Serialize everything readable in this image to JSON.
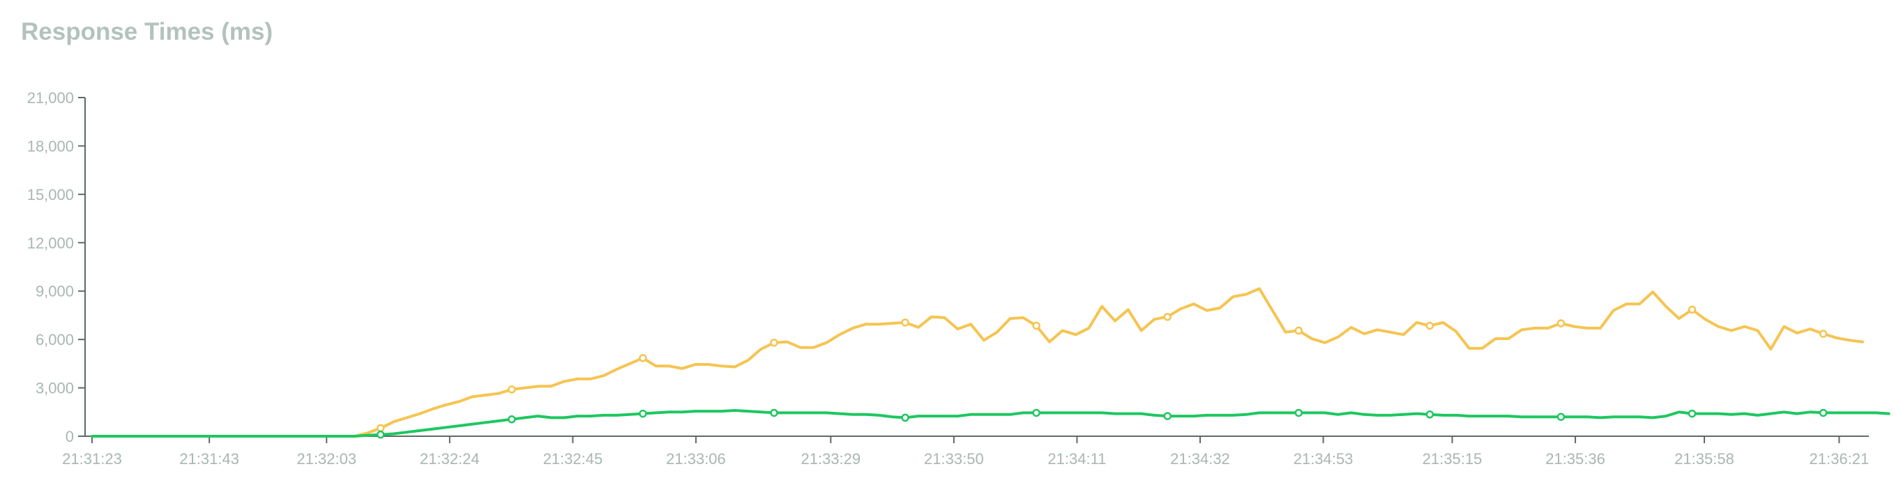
{
  "chart_data": {
    "type": "line",
    "title": "Response Times (ms)",
    "xlabel": "",
    "ylabel": "",
    "ylim": [
      0,
      21000
    ],
    "yticks": [
      0,
      3000,
      6000,
      9000,
      12000,
      15000,
      18000,
      21000
    ],
    "yticks_labels": [
      "0",
      "3,000",
      "6,000",
      "9,000",
      "12,000",
      "15,000",
      "18,000",
      "21,000"
    ],
    "x_start": "21:31:23",
    "x_end": "21:36:25",
    "xticks": [
      "21:31:23",
      "21:31:43",
      "21:32:03",
      "21:32:24",
      "21:32:45",
      "21:33:06",
      "21:33:29",
      "21:33:50",
      "21:34:11",
      "21:34:32",
      "21:34:53",
      "21:35:15",
      "21:35:36",
      "21:35:58",
      "21:36:21"
    ],
    "grid": false,
    "legend": "none",
    "series": [
      {
        "color": "#f5c451",
        "values": [
          0,
          0,
          0,
          0,
          0,
          0,
          0,
          0,
          0,
          0,
          0,
          0,
          0,
          0,
          0,
          0,
          0,
          0,
          0,
          0,
          0,
          200,
          500,
          900,
          1150,
          1400,
          1700,
          1950,
          2150,
          2450,
          2550,
          2650,
          2900,
          3000,
          3100,
          3100,
          3400,
          3550,
          3550,
          3750,
          4150,
          4500,
          4850,
          4350,
          4350,
          4200,
          4450,
          4450,
          4350,
          4300,
          4700,
          5400,
          5800,
          5850,
          5500,
          5500,
          5800,
          6300,
          6700,
          6950,
          6950,
          7000,
          7050,
          6750,
          7400,
          7350,
          6650,
          6950,
          5950,
          6450,
          7300,
          7350,
          6850,
          5850,
          6550,
          6300,
          6700,
          8050,
          7150,
          7850,
          6550,
          7250,
          7400,
          7900,
          8200,
          7800,
          7950,
          8650,
          8800,
          9150,
          7800,
          6450,
          6550,
          6050,
          5800,
          6150,
          6750,
          6350,
          6600,
          6450,
          6300,
          7050,
          6850,
          7050,
          6500,
          5450,
          5450,
          6050,
          6050,
          6600,
          6700,
          6700,
          7000,
          6800,
          6700,
          6700,
          7800,
          8200,
          8200,
          8950,
          8050,
          7300,
          7850,
          7250,
          6800,
          6550,
          6800,
          6550,
          5400,
          6800,
          6400,
          6650,
          6350,
          6100,
          5950,
          5850
        ],
        "markers": [
          22,
          32,
          42,
          52,
          62,
          72,
          82,
          92,
          102,
          112,
          122,
          132,
          142
        ]
      },
      {
        "color": "#1ec760",
        "values": [
          0,
          0,
          0,
          0,
          0,
          0,
          0,
          0,
          0,
          0,
          0,
          0,
          0,
          0,
          0,
          0,
          0,
          0,
          0,
          0,
          0,
          50,
          100,
          150,
          250,
          350,
          450,
          550,
          650,
          750,
          850,
          950,
          1050,
          1150,
          1250,
          1150,
          1150,
          1250,
          1250,
          1300,
          1300,
          1350,
          1400,
          1450,
          1500,
          1500,
          1550,
          1550,
          1550,
          1600,
          1550,
          1500,
          1450,
          1450,
          1450,
          1450,
          1450,
          1400,
          1350,
          1350,
          1300,
          1200,
          1150,
          1250,
          1250,
          1250,
          1250,
          1350,
          1350,
          1350,
          1350,
          1450,
          1450,
          1450,
          1450,
          1450,
          1450,
          1450,
          1400,
          1400,
          1400,
          1300,
          1250,
          1250,
          1250,
          1300,
          1300,
          1300,
          1350,
          1450,
          1450,
          1450,
          1450,
          1450,
          1450,
          1350,
          1450,
          1350,
          1300,
          1300,
          1350,
          1400,
          1350,
          1300,
          1300,
          1250,
          1250,
          1250,
          1250,
          1200,
          1200,
          1200,
          1200,
          1200,
          1200,
          1150,
          1200,
          1200,
          1200,
          1150,
          1250,
          1500,
          1400,
          1400,
          1400,
          1350,
          1400,
          1300,
          1400,
          1500,
          1400,
          1500,
          1450,
          1450,
          1450,
          1450,
          1450,
          1400
        ],
        "markers": [
          22,
          32,
          42,
          52,
          62,
          72,
          82,
          92,
          102,
          112,
          122,
          132,
          142
        ]
      }
    ]
  }
}
